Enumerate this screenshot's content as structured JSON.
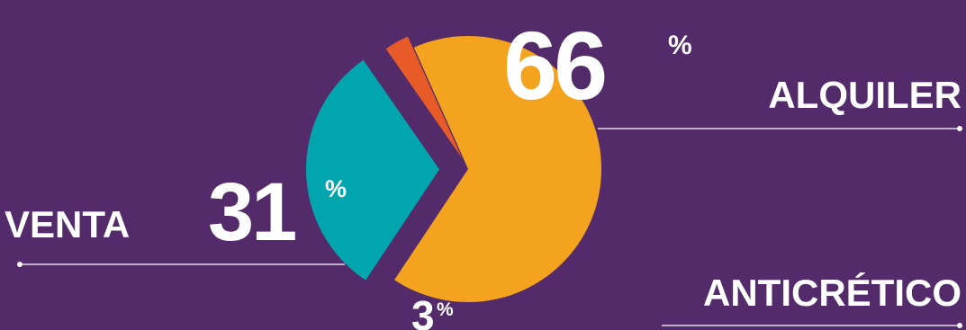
{
  "colors": {
    "background": "#542b6a",
    "alquiler": "#f4a31f",
    "venta": "#00a5ad",
    "anticretico": "#e85a28",
    "text": "#ffffff"
  },
  "chart_data": {
    "type": "pie",
    "title": "",
    "series": [
      {
        "name": "ALQUILER",
        "value": 66,
        "value_label": "66",
        "unit": "%",
        "color": "#f4a31f"
      },
      {
        "name": "VENTA",
        "value": 31,
        "value_label": "31",
        "unit": "%",
        "color": "#00a5ad"
      },
      {
        "name": "ANTICRÉTICO",
        "value": 3,
        "value_label": "3",
        "unit": "%",
        "color": "#e85a28"
      }
    ],
    "legend": "none",
    "labels": "outside-with-leader-lines"
  }
}
